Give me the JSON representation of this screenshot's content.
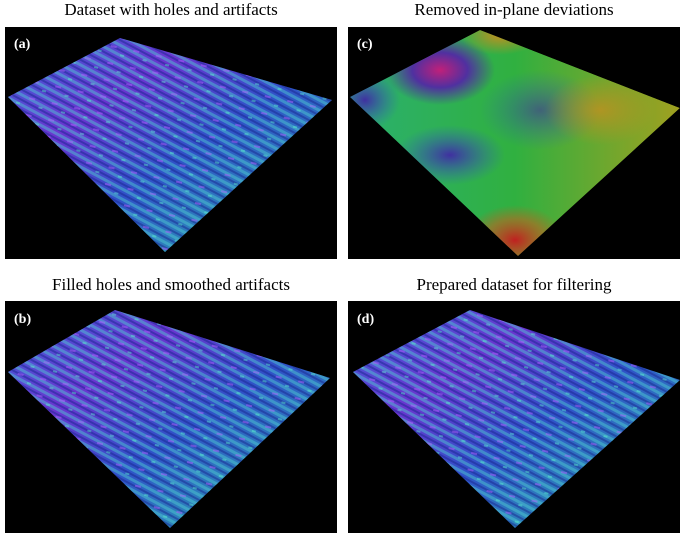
{
  "panels": [
    {
      "title": "Dataset with holes and artifacts",
      "label": "(a)"
    },
    {
      "title": "Removed in-plane deviations",
      "label": "(c)"
    },
    {
      "title": "Filled holes and smoothed artifacts",
      "label": "(b)"
    },
    {
      "title": "Prepared dataset for filtering",
      "label": "(d)"
    }
  ]
}
